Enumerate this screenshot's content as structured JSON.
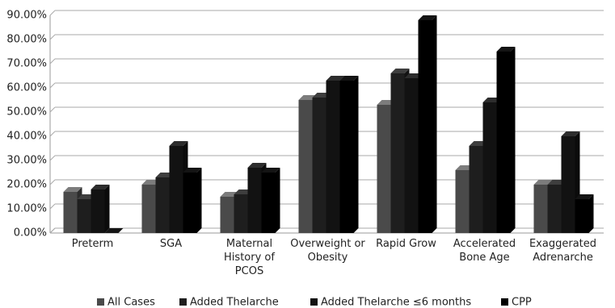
{
  "chart_data": {
    "type": "bar3d",
    "categories": [
      "Preterm",
      "SGA",
      "Maternal History of PCOS",
      "Overweight or Obesity",
      "Rapid Grow",
      "Accelerated Bone Age",
      "Exaggerated Adrenarche"
    ],
    "series": [
      {
        "name": "All Cases",
        "color": "#4a4a4a",
        "values": [
          17,
          20,
          15,
          55,
          53,
          26,
          20
        ]
      },
      {
        "name": "Added Thelarche",
        "color": "#1e1e1e",
        "values": [
          14,
          23,
          16,
          56,
          66,
          36,
          20
        ]
      },
      {
        "name": "Added Thelarche ≤6 months",
        "color": "#121212",
        "values": [
          18,
          36,
          27,
          63,
          64,
          54,
          40
        ]
      },
      {
        "name": "CPP",
        "color": "#000000",
        "values": [
          0,
          25,
          25,
          63,
          88,
          75,
          14
        ]
      }
    ],
    "ylim": [
      0,
      90
    ],
    "yticks": [
      {
        "value": 0,
        "label": "0.00%"
      },
      {
        "value": 10,
        "label": "10.00%"
      },
      {
        "value": 20,
        "label": "20.00%"
      },
      {
        "value": 30,
        "label": "30.00%"
      },
      {
        "value": 40,
        "label": "40.00%"
      },
      {
        "value": 50,
        "label": "50.00%"
      },
      {
        "value": 60,
        "label": "60.00%"
      },
      {
        "value": 70,
        "label": "70.00%"
      },
      {
        "value": 80,
        "label": "80.00%"
      },
      {
        "value": 90,
        "label": "90.00%"
      }
    ],
    "grid": true
  }
}
